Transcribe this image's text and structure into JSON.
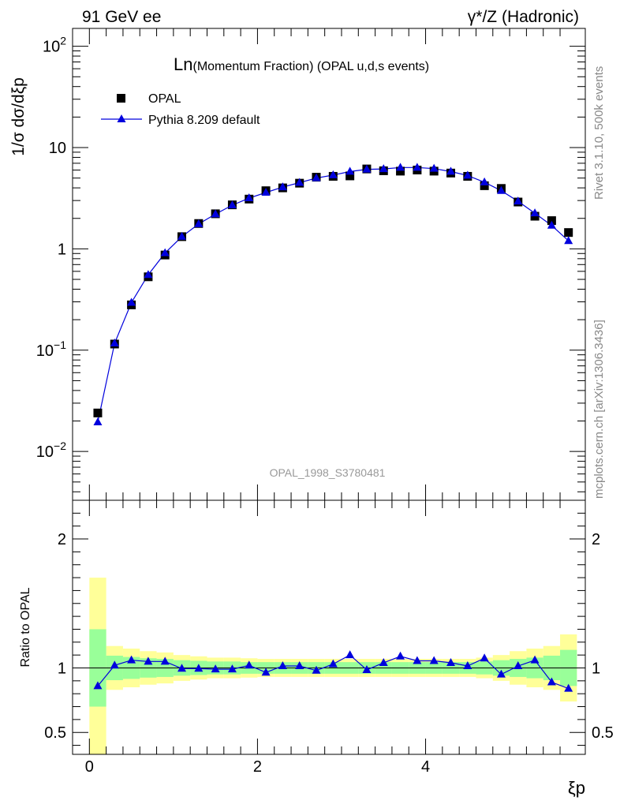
{
  "header": {
    "left": "91 GeV ee",
    "right": "γ*/Z (Hadronic)"
  },
  "side_labels": {
    "top": "Rivet 3.1.10,  500k events",
    "bottom": "mcplots.cern.ch [arXiv:1306.3436]"
  },
  "chart_data": [
    {
      "type": "scatter",
      "panel": "main",
      "title_prefix": "Ln",
      "title_suffix": "(Momentum Fraction) (OPAL u,d,s events)",
      "watermark": "OPAL_1998_S3780481",
      "ylabel": "1/σ dσ/dξp",
      "xlabel": "ξp",
      "y_scale": "log",
      "xlim": [
        -0.2,
        5.9
      ],
      "ylim": [
        0.0033,
        150
      ],
      "y_tick_labels": [
        "10^-2",
        "10^-1",
        "1",
        "10",
        "10^2"
      ],
      "legend_placement": "top-left",
      "x": [
        0.1,
        0.3,
        0.5,
        0.7,
        0.9,
        1.1,
        1.3,
        1.5,
        1.7,
        1.9,
        2.1,
        2.3,
        2.5,
        2.7,
        2.9,
        3.1,
        3.3,
        3.5,
        3.7,
        3.9,
        4.1,
        4.3,
        4.5,
        4.7,
        4.9,
        5.1,
        5.3,
        5.5,
        5.7
      ],
      "series": [
        {
          "name": "OPAL",
          "marker": "square",
          "color": "#000000",
          "values": [
            0.024,
            0.115,
            0.28,
            0.53,
            0.87,
            1.32,
            1.78,
            2.22,
            2.72,
            3.1,
            3.75,
            4.0,
            4.45,
            5.1,
            5.2,
            5.25,
            6.15,
            5.9,
            5.85,
            6.0,
            5.85,
            5.6,
            5.2,
            4.2,
            3.95,
            2.9,
            2.1,
            1.9,
            1.45
          ]
        },
        {
          "name": "Pythia 8.209 default",
          "marker": "triangle",
          "color": "#0000dd",
          "values": [
            0.0195,
            0.117,
            0.295,
            0.555,
            0.91,
            1.32,
            1.76,
            2.2,
            2.7,
            3.17,
            3.6,
            4.07,
            4.5,
            5.0,
            5.35,
            5.8,
            6.1,
            6.15,
            6.35,
            6.35,
            6.2,
            5.8,
            5.3,
            4.55,
            3.75,
            2.95,
            2.25,
            1.7,
            1.2
          ]
        }
      ]
    },
    {
      "type": "line",
      "panel": "ratio",
      "ylabel": "Ratio to OPAL",
      "xlabel": "ξp",
      "xlim": [
        -0.2,
        5.9
      ],
      "ylim": [
        0.33,
        2.3
      ],
      "x_tick_labels": [
        "0",
        "2",
        "4"
      ],
      "y_tick_labels": [
        "0.5",
        "1",
        "2"
      ],
      "band_colors": {
        "outer": "#ffff99",
        "inner": "#99ff99"
      },
      "x": [
        0.1,
        0.3,
        0.5,
        0.7,
        0.9,
        1.1,
        1.3,
        1.5,
        1.7,
        1.9,
        2.1,
        2.3,
        2.5,
        2.7,
        2.9,
        3.1,
        3.3,
        3.5,
        3.7,
        3.9,
        4.1,
        4.3,
        4.5,
        4.7,
        4.9,
        5.1,
        5.3,
        5.5,
        5.7
      ],
      "band_inner_halfwidth": [
        0.3,
        0.095,
        0.085,
        0.075,
        0.07,
        0.06,
        0.055,
        0.05,
        0.05,
        0.045,
        0.045,
        0.045,
        0.045,
        0.045,
        0.045,
        0.045,
        0.045,
        0.045,
        0.045,
        0.045,
        0.045,
        0.045,
        0.045,
        0.05,
        0.06,
        0.07,
        0.08,
        0.095,
        0.14
      ],
      "band_outer_halfwidth": [
        0.7,
        0.17,
        0.15,
        0.13,
        0.12,
        0.1,
        0.09,
        0.08,
        0.08,
        0.075,
        0.07,
        0.07,
        0.07,
        0.07,
        0.07,
        0.07,
        0.07,
        0.07,
        0.07,
        0.07,
        0.07,
        0.07,
        0.07,
        0.08,
        0.1,
        0.13,
        0.15,
        0.17,
        0.26
      ],
      "series": [
        {
          "name": "Pythia 8.209 default",
          "color": "#0000dd",
          "values": [
            0.86,
            1.02,
            1.06,
            1.05,
            1.05,
            0.995,
            0.995,
            0.99,
            0.99,
            1.02,
            0.965,
            1.015,
            1.015,
            0.98,
            1.03,
            1.1,
            0.985,
            1.04,
            1.09,
            1.055,
            1.055,
            1.04,
            1.015,
            1.075,
            0.95,
            1.015,
            1.06,
            0.89,
            0.84
          ]
        }
      ]
    }
  ]
}
